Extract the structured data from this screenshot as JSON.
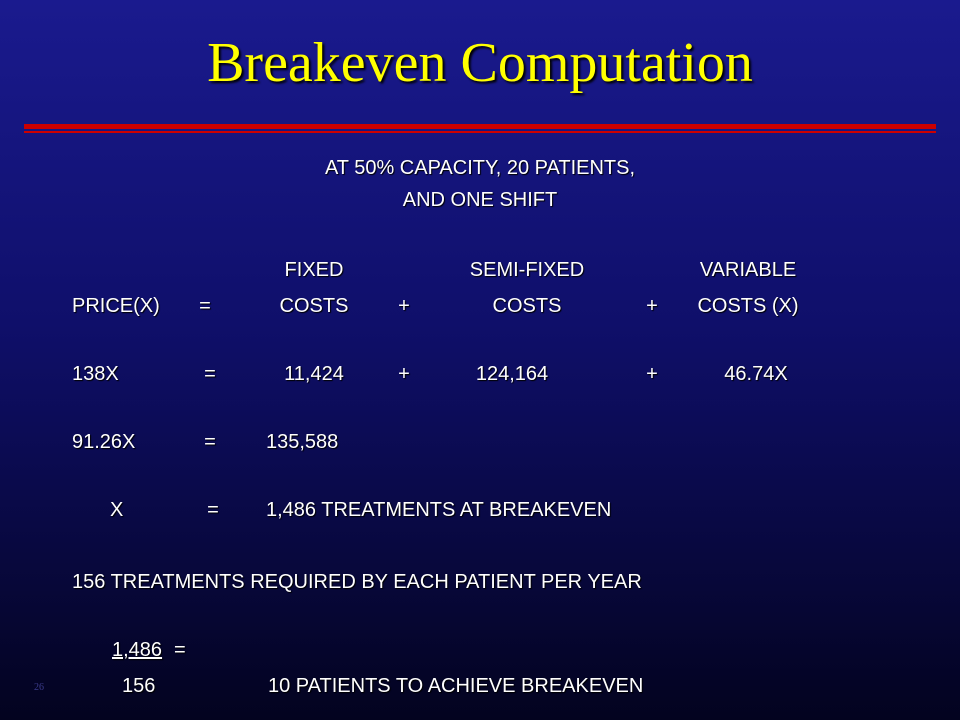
{
  "title": "Breakeven Computation",
  "subtitle_line1": "AT 50% CAPACITY, 20 PATIENTS,",
  "subtitle_line2": "AND ONE SHIFT",
  "headers": {
    "fixed": "FIXED",
    "semi_fixed": "SEMI-FIXED",
    "variable": "VARIABLE"
  },
  "equation1": {
    "lhs": "PRICE(X)",
    "eq": "=",
    "a": "COSTS",
    "plus1": "+",
    "b": "COSTS",
    "plus2": "+",
    "c": "COSTS (X)"
  },
  "equation2": {
    "lhs": "138X",
    "eq": "=",
    "a": "11,424",
    "plus1": "+",
    "b": "124,164",
    "plus2": "+",
    "c": "46.74X"
  },
  "equation3": {
    "lhs": "91.26X",
    "eq": "=",
    "rhs": "135,588"
  },
  "equation4": {
    "lhs": "X",
    "eq": "=",
    "rhs": "1,486  TREATMENTS AT BREAKEVEN"
  },
  "treatments_line": "156 TREATMENTS REQUIRED BY EACH PATIENT PER YEAR",
  "fraction": {
    "numerator": "1,486",
    "eq": "=",
    "denominator": "156",
    "result": "10 PATIENTS TO ACHIEVE BREAKEVEN"
  },
  "slide_number": "26"
}
